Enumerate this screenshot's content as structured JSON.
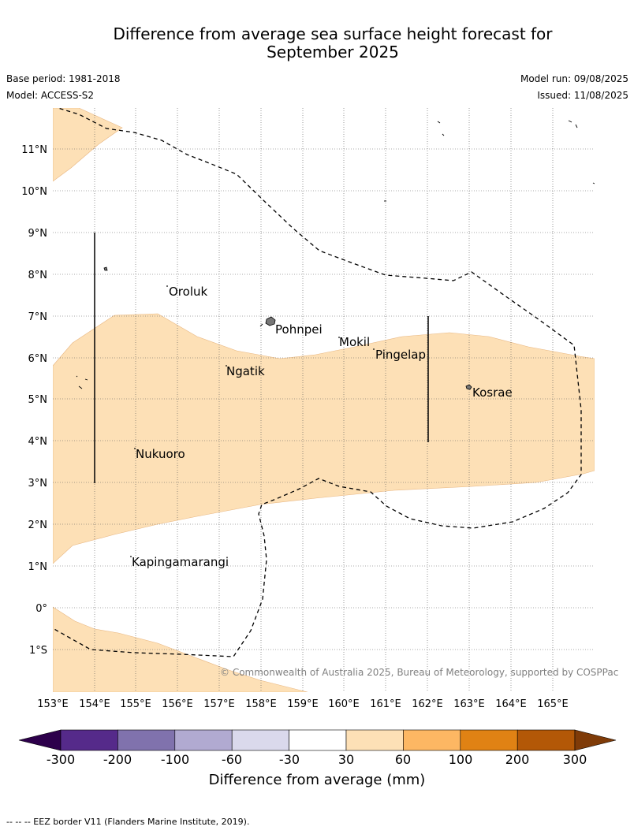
{
  "header": {
    "title_line1": "Difference from average sea surface height forecast for",
    "title_line2": "September 2025",
    "base_period": "Base period: 1981-2018",
    "model": "Model: ACCESS-S2",
    "model_run": "Model run: 09/08/2025",
    "issued": "Issued: 11/08/2025"
  },
  "map": {
    "lat_labels": [
      "11°N",
      "10°N",
      "9°N",
      "8°N",
      "7°N",
      "6°N",
      "5°N",
      "4°N",
      "3°N",
      "2°N",
      "1°N",
      "0°",
      "1°S"
    ],
    "lon_labels": [
      "153°E",
      "154°E",
      "155°E",
      "156°E",
      "157°E",
      "158°E",
      "159°E",
      "160°E",
      "161°E",
      "162°E",
      "163°E",
      "164°E",
      "165°E"
    ],
    "places": [
      "Oroluk",
      "Pohnpei",
      "Mokil",
      "Pingelap",
      "Ngatik",
      "Kosrae",
      "Nukuoro",
      "Kapingamarangi"
    ],
    "copyright": "© Commonwealth of Australia 2025, Bureau of Meteorology, supported by COSPPac",
    "shading": {
      "category": "30 to 60",
      "color": "#fde0b6"
    }
  },
  "colorbar": {
    "ticks": [
      "-300",
      "-200",
      "-100",
      "-60",
      "-30",
      "30",
      "60",
      "100",
      "200",
      "300"
    ],
    "colors": [
      "#552a8a",
      "#8072ad",
      "#b1aad1",
      "#dad9ec",
      "#ffffff",
      "#fde0b6",
      "#fdb763",
      "#e08214",
      "#b35807"
    ],
    "extend_low_color": "#2d004b",
    "extend_high_color": "#7f3b08",
    "label": "Difference from average (mm)"
  },
  "footer": {
    "eez_note": "--  --  -- EEZ border V11 (Flanders Marine Institute, 2019)."
  }
}
